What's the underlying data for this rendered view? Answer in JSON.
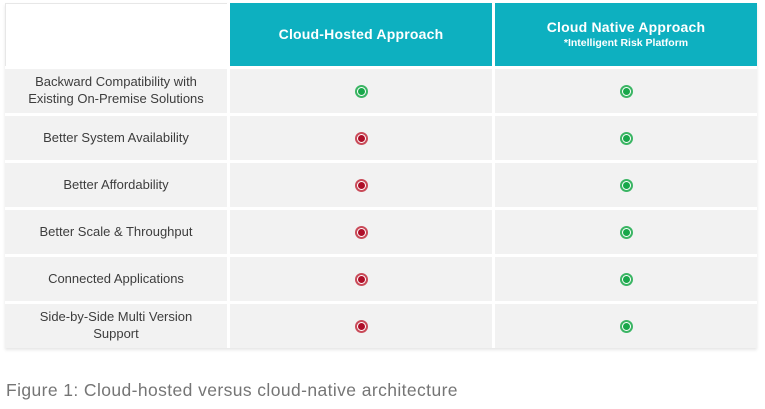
{
  "colors": {
    "header_bg": "#0db0c0",
    "row_bg": "#f2f2f2",
    "green_ring": "#3bb564",
    "green_dot": "#18a74a",
    "red_ring": "#c94b59",
    "red_dot": "#ae0e28",
    "label_text": "#3d3d3d",
    "caption_text": "#757575"
  },
  "table": {
    "columns": [
      {
        "label": "Cloud-Hosted Approach",
        "subtitle": ""
      },
      {
        "label": "Cloud Native Approach",
        "subtitle": "*Intelligent Risk Platform"
      }
    ],
    "rows": [
      {
        "label": "Backward Compatibility with Existing On-Premise Solutions",
        "cloud_hosted": "green",
        "cloud_native": "green"
      },
      {
        "label": "Better System Availability",
        "cloud_hosted": "red",
        "cloud_native": "green"
      },
      {
        "label": "Better Affordability",
        "cloud_hosted": "red",
        "cloud_native": "green"
      },
      {
        "label": "Better Scale & Throughput",
        "cloud_hosted": "red",
        "cloud_native": "green"
      },
      {
        "label": "Connected Applications",
        "cloud_hosted": "red",
        "cloud_native": "green"
      },
      {
        "label": "Side-by-Side Multi Version Support",
        "cloud_hosted": "red",
        "cloud_native": "green"
      }
    ]
  },
  "caption": "Figure 1: Cloud-hosted versus cloud-native architecture"
}
